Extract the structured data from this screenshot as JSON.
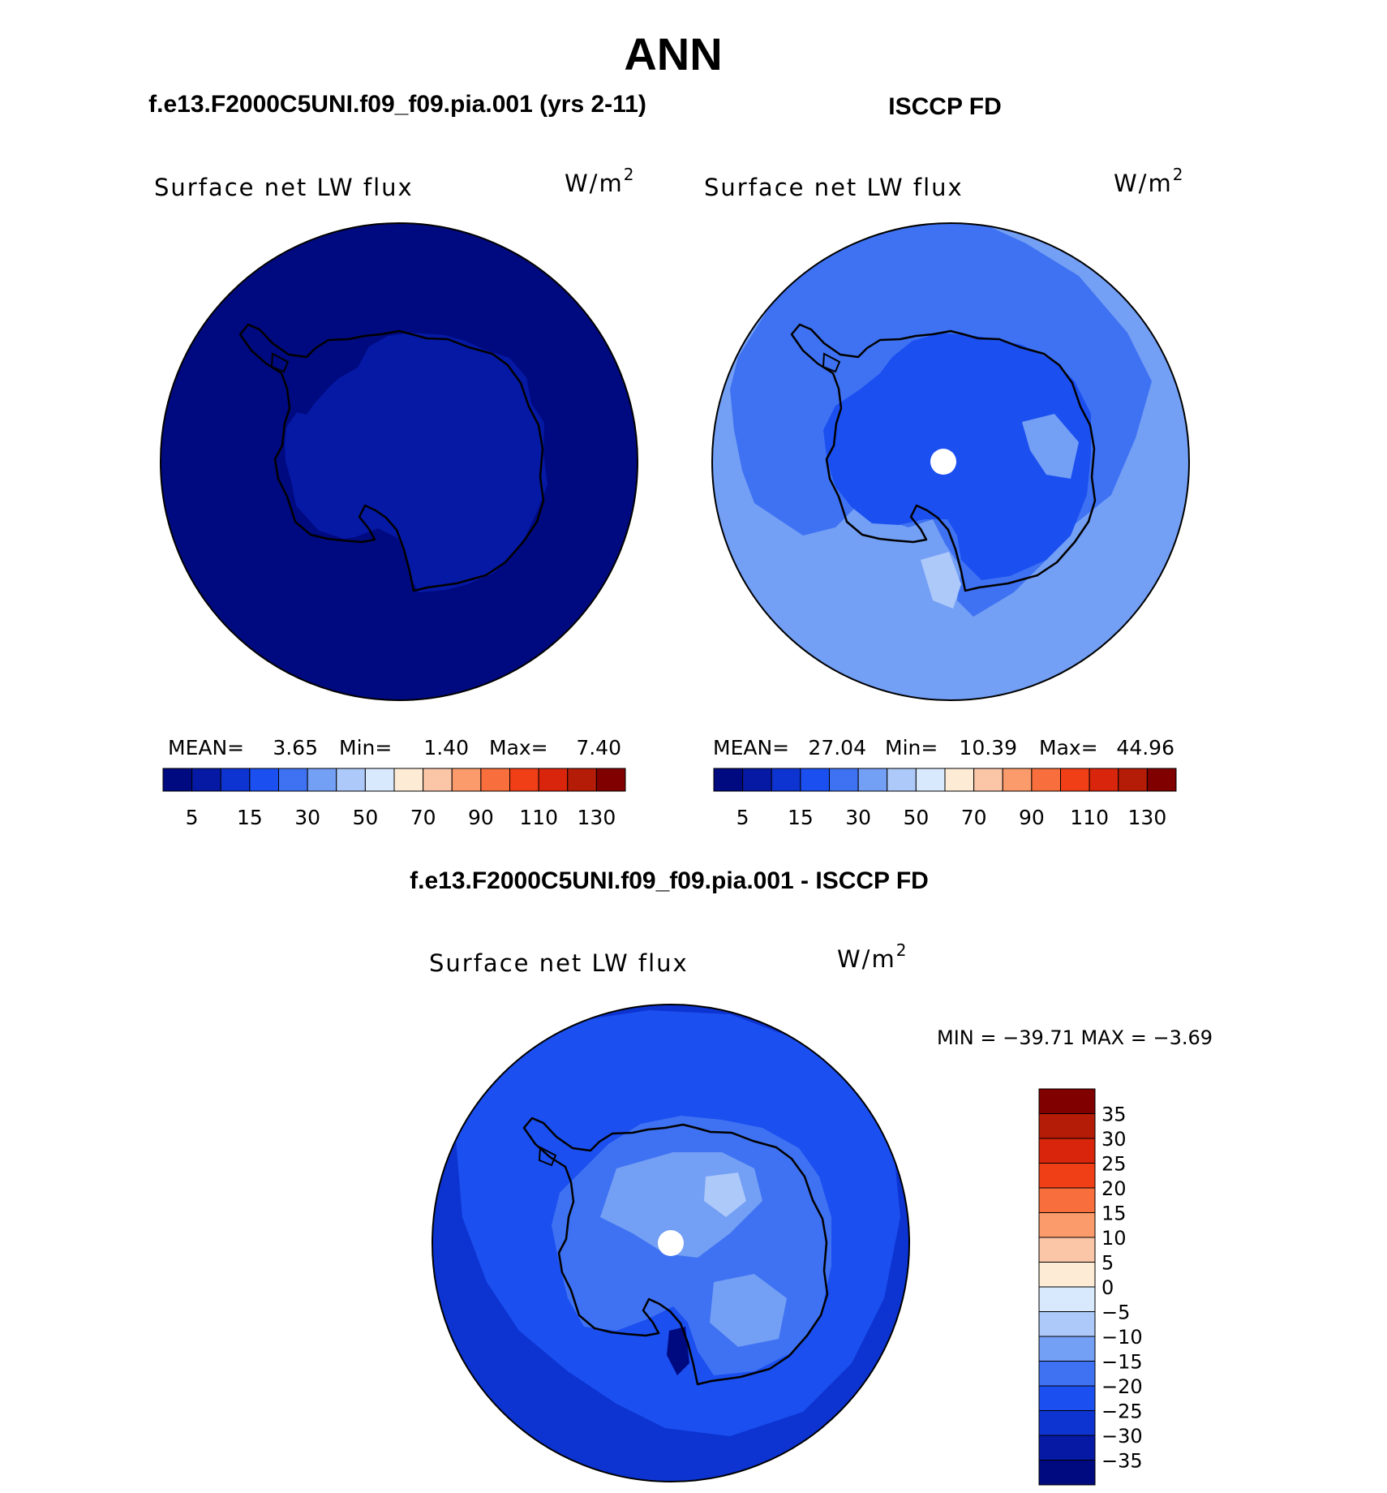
{
  "title": "ANN",
  "colors": {
    "darkest_blue": "#000a80",
    "cbar": [
      "#000a80",
      "#0519a5",
      "#0d34d1",
      "#1b4ff0",
      "#3f72f2",
      "#739ff5",
      "#adc9f9",
      "#d8e9fd",
      "#fdebd6",
      "#fbc6a7",
      "#fb9a6a",
      "#f86e3c",
      "#f03e17",
      "#d9250b",
      "#b51c07",
      "#800000"
    ]
  },
  "panels": [
    {
      "heading": "f.e13.F2000C5UNI.f09_f09.pia.001 (yrs 2-11)",
      "subtitle": "Surface net LW flux",
      "units": "W/m",
      "units_sup": "2",
      "stats": {
        "mean_label": "MEAN=",
        "mean": "3.65",
        "min_label": "Min=",
        "min": "1.40",
        "max_label": "Max=",
        "max": "7.40"
      },
      "cbar_ticks": [
        "5",
        "15",
        "30",
        "50",
        "70",
        "90",
        "110",
        "130"
      ]
    },
    {
      "heading": "ISCCP FD",
      "subtitle": "Surface net LW flux",
      "units": "W/m",
      "units_sup": "2",
      "stats": {
        "mean_label": "MEAN=",
        "mean": "27.04",
        "min_label": "Min=",
        "min": "10.39",
        "max_label": "Max=",
        "max": "44.96"
      },
      "cbar_ticks": [
        "5",
        "15",
        "30",
        "50",
        "70",
        "90",
        "110",
        "130"
      ]
    }
  ],
  "diff": {
    "heading": "f.e13.F2000C5UNI.f09_f09.pia.001 - ISCCP FD",
    "subtitle": "Surface net LW flux",
    "units": "W/m",
    "units_sup": "2",
    "minmax": "MIN = −39.71  MAX =   −3.69",
    "cbar_ticks": [
      "35",
      "30",
      "25",
      "20",
      "15",
      "10",
      "5",
      "0",
      "−5",
      "−10",
      "−15",
      "−20",
      "−25",
      "−30",
      "−35"
    ]
  }
}
